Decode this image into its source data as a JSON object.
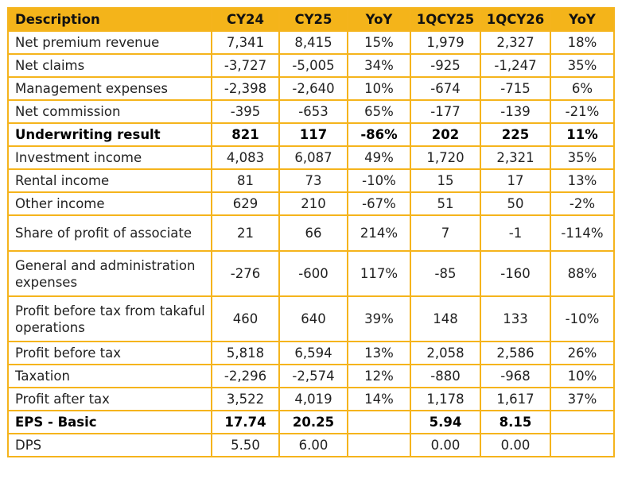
{
  "table": {
    "headers": [
      "Description",
      "CY24",
      "CY25",
      "YoY",
      "1QCY25",
      "1QCY26",
      "YoY"
    ],
    "rows": [
      {
        "cells": [
          "Net premium revenue",
          "7,341",
          "8,415",
          "15%",
          "1,979",
          "2,327",
          "18%"
        ],
        "bold": false
      },
      {
        "cells": [
          "Net claims",
          "-3,727",
          "-5,005",
          "34%",
          "-925",
          "-1,247",
          "35%"
        ],
        "bold": false
      },
      {
        "cells": [
          "Management expenses",
          "-2,398",
          "-2,640",
          "10%",
          "-674",
          "-715",
          "6%"
        ],
        "bold": false
      },
      {
        "cells": [
          "Net commission",
          "-395",
          "-653",
          "65%",
          "-177",
          "-139",
          "-21%"
        ],
        "bold": false
      },
      {
        "cells": [
          "Underwriting result",
          "821",
          "117",
          "-86%",
          "202",
          "225",
          "11%"
        ],
        "bold": true
      },
      {
        "cells": [
          "Investment income",
          "4,083",
          "6,087",
          "49%",
          "1,720",
          "2,321",
          "35%"
        ],
        "bold": false
      },
      {
        "cells": [
          "Rental income",
          "81",
          "73",
          "-10%",
          "15",
          "17",
          "13%"
        ],
        "bold": false
      },
      {
        "cells": [
          "Other income",
          "629",
          "210",
          "-67%",
          "51",
          "50",
          "-2%"
        ],
        "bold": false
      },
      {
        "cells": [
          "Share of profit of associate",
          "21",
          "66",
          "214%",
          "7",
          "-1",
          "-114%"
        ],
        "bold": false
      },
      {
        "cells": [
          "General and administration expenses",
          "-276",
          "-600",
          "117%",
          "-85",
          "-160",
          "88%"
        ],
        "bold": false
      },
      {
        "cells": [
          "Profit before tax from takaful operations",
          "460",
          "640",
          "39%",
          "148",
          "133",
          "-10%"
        ],
        "bold": false
      },
      {
        "cells": [
          "Profit before tax",
          "5,818",
          "6,594",
          "13%",
          "2,058",
          "2,586",
          "26%"
        ],
        "bold": false
      },
      {
        "cells": [
          "Taxation",
          "-2,296",
          "-2,574",
          "12%",
          "-880",
          "-968",
          "10%"
        ],
        "bold": false
      },
      {
        "cells": [
          "Profit after tax",
          "3,522",
          "4,019",
          "14%",
          "1,178",
          "1,617",
          "37%"
        ],
        "bold": false
      },
      {
        "cells": [
          "EPS - Basic",
          "17.74",
          "20.25",
          "",
          "5.94",
          "8.15",
          ""
        ],
        "bold": true
      },
      {
        "cells": [
          "DPS",
          "5.50",
          "6.00",
          "",
          "0.00",
          "0.00",
          ""
        ],
        "bold": false
      }
    ]
  },
  "colors": {
    "header_bg": "#F4B41A",
    "border": "#F5B41C"
  }
}
